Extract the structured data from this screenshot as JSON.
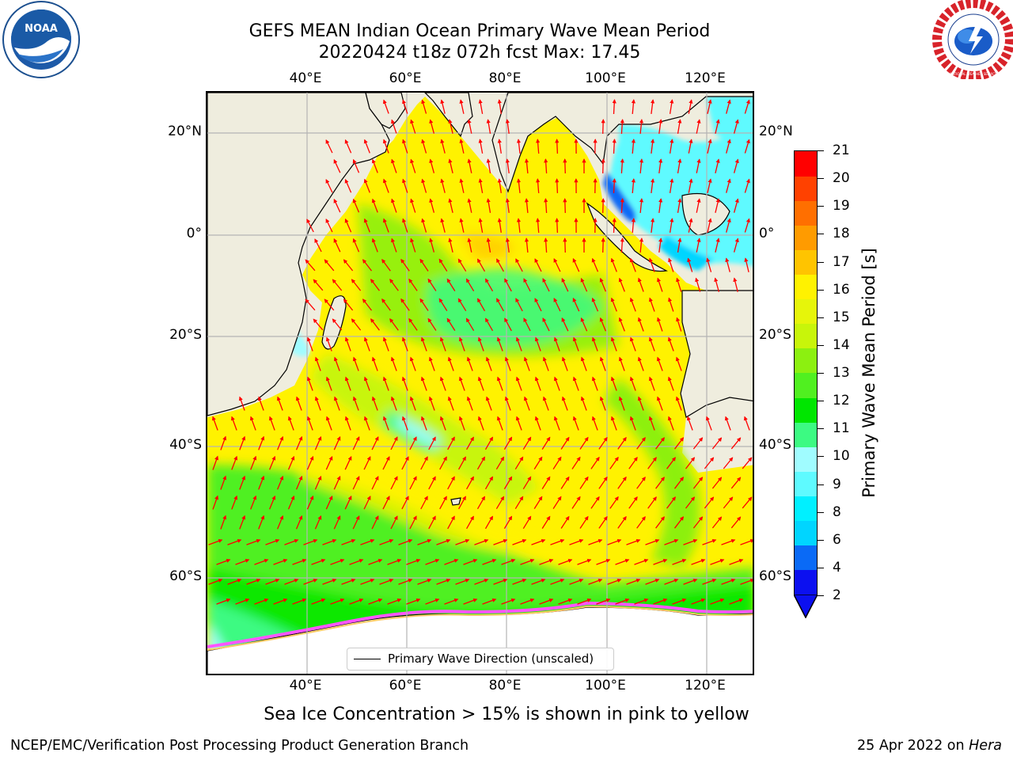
{
  "title_line1": "GEFS MEAN Indian Ocean Primary Wave Mean Period",
  "title_line2": "20220424 t18z 072h fcst   Max: 17.45",
  "lon_ticks": [
    "40°E",
    "60°E",
    "80°E",
    "100°E",
    "120°E"
  ],
  "lat_ticks_left": [
    "20°N",
    "0°",
    "20°S",
    "40°S",
    "60°S"
  ],
  "lat_ticks_right": [
    "20°N",
    "0°",
    "20°S",
    "40°S",
    "60°S"
  ],
  "legend_label": "Primary Wave Direction (unscaled)",
  "colorbar": {
    "label": "Primary Wave Mean Period [s]",
    "ticks": [
      "21",
      "20",
      "19",
      "18",
      "17",
      "16",
      "15",
      "14",
      "13",
      "12",
      "11",
      "10",
      "9",
      "8",
      "6",
      "4",
      "2"
    ],
    "colors": [
      "#0c10f0",
      "#0a6af6",
      "#00d5ff",
      "#00f0ff",
      "#5efaff",
      "#a0fcff",
      "#3cfa82",
      "#00e600",
      "#50f020",
      "#8cf010",
      "#c8f50a",
      "#e6f50a",
      "#fff200",
      "#ffc400",
      "#ff9b00",
      "#ff6f00",
      "#ff4100",
      "#ff0000"
    ]
  },
  "subtitle": "Sea Ice Concentration > 15% is shown in pink to yellow",
  "footer_left": "NCEP/EMC/Verification Post Processing Product Generation Branch",
  "footer_date": "25 Apr 2022 on ",
  "footer_machine": "Hera",
  "logos": {
    "left": "NOAA",
    "right": "NATIONAL WEATHER SERVICE"
  },
  "colors": {
    "arrows": "#ff0000",
    "land": "#efedde",
    "grid": "#b4b4b4"
  }
}
